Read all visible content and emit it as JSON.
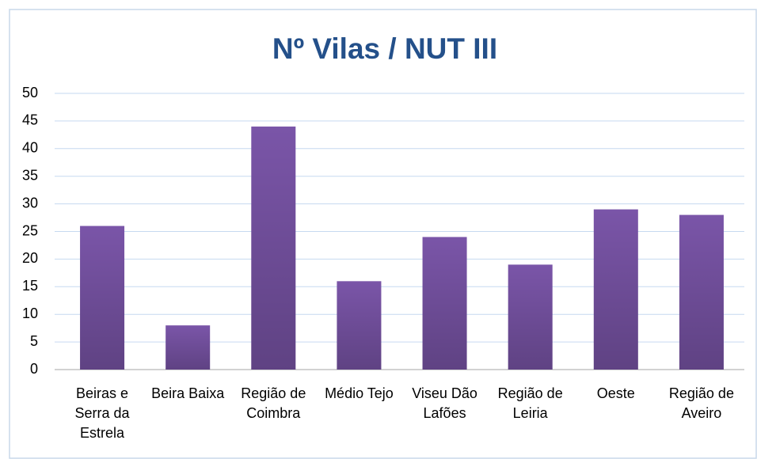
{
  "chart_data": {
    "type": "bar",
    "title": "Nº Vilas / NUT III",
    "categories": [
      "Beiras e Serra da Estrela",
      "Beira Baixa",
      "Região de Coimbra",
      "Médio Tejo",
      "Viseu Dão Lafões",
      "Região de Leiria",
      "Oeste",
      "Região de Aveiro"
    ],
    "values": [
      26,
      8,
      44,
      16,
      24,
      19,
      29,
      28
    ],
    "color": "#7a55a8",
    "ylim": [
      0,
      50
    ],
    "yticks": [
      0,
      5,
      10,
      15,
      20,
      25,
      30,
      35,
      40,
      45,
      50
    ],
    "grid": true
  }
}
